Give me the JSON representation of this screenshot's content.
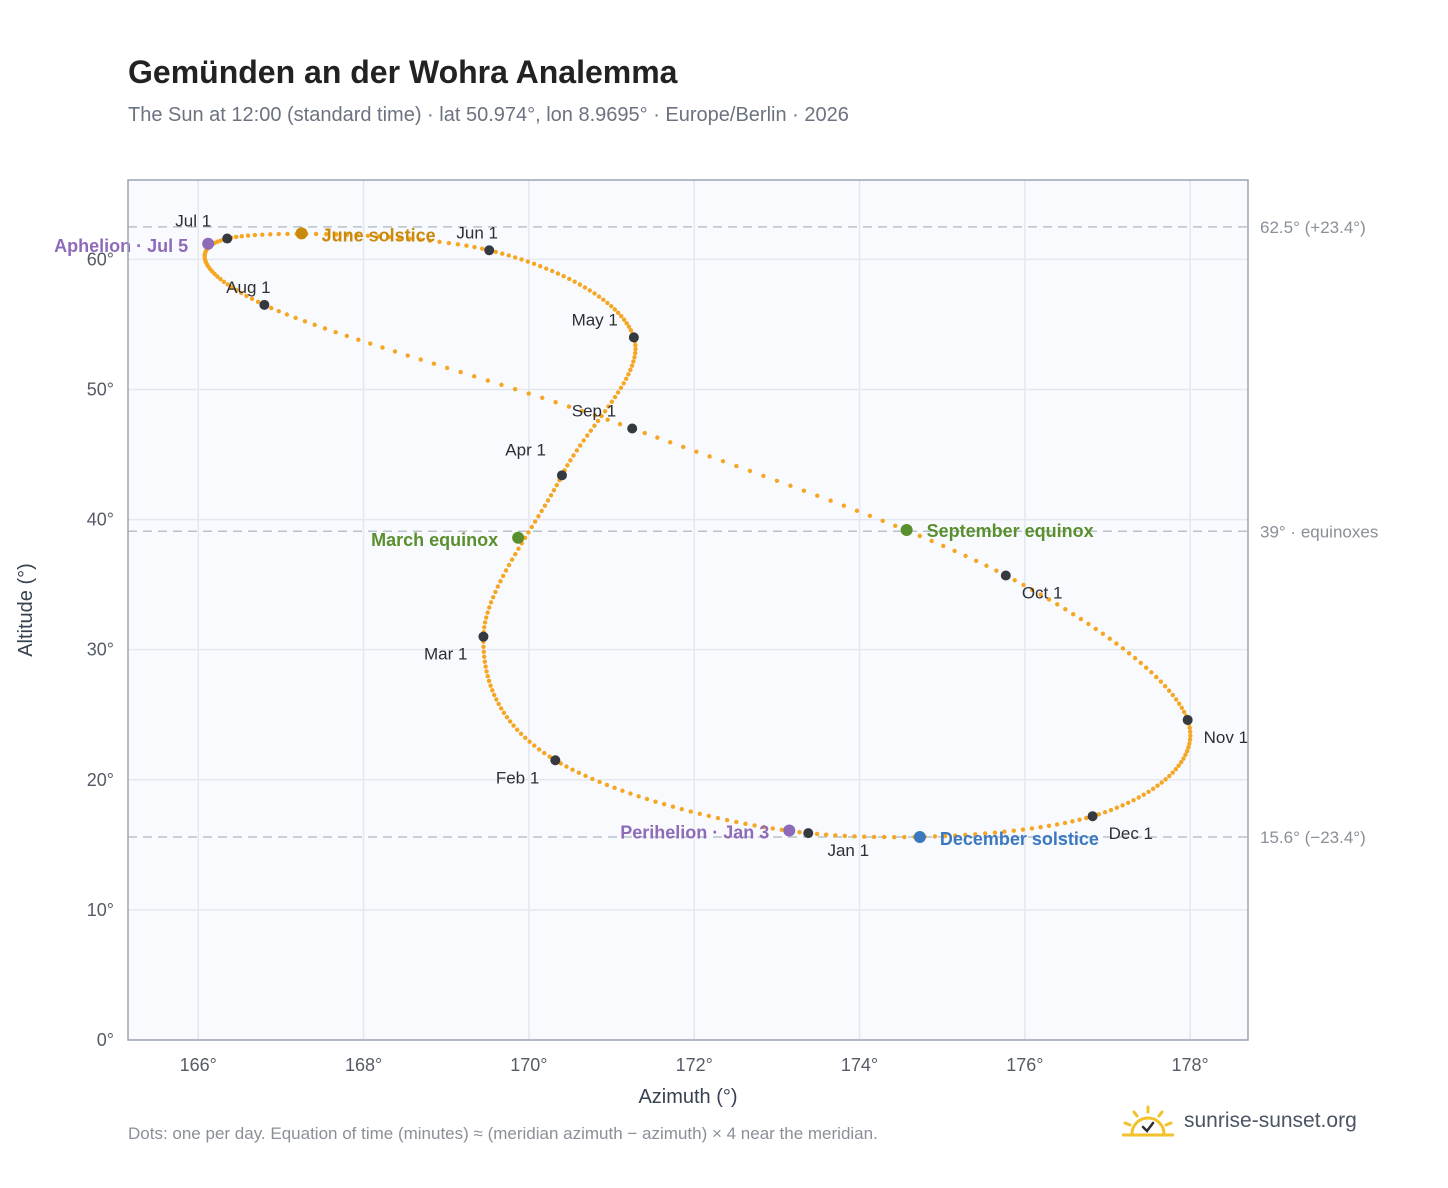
{
  "header": {
    "title": "Gemünden an der Wohra Analemma",
    "subtitle": "The Sun at 12:00 (standard time) · lat 50.974°, lon 8.9695° · Europe/Berlin · 2026"
  },
  "footer": {
    "note": "Dots: one per day. Equation of time (minutes) ≈ (meridian azimuth − azimuth) × 4 near the meridian.",
    "brand": "sunrise-sunset.org"
  },
  "colors": {
    "path": "#f5a623",
    "month_marker": "#343a40",
    "aphelion": "#8e6bb8",
    "solstice_june": "#c98a0c",
    "equinox": "#5a8f2e",
    "solstice_december": "#3b78c0",
    "plot_bg": "#f8fafd",
    "grid": "#e4e8ee",
    "reference_line": "#b8c2cc"
  },
  "chart_data": {
    "type": "scatter",
    "xlabel": "Azimuth (°)",
    "ylabel": "Altitude (°)",
    "xlim": [
      165.15,
      178.7
    ],
    "ylim": [
      0,
      62.0
    ],
    "x_ticks": [
      "166°",
      "168°",
      "170°",
      "172°",
      "174°",
      "176°",
      "178°"
    ],
    "x_tick_values": [
      166,
      168,
      170,
      172,
      174,
      176,
      178
    ],
    "y_ticks": [
      "0°",
      "10°",
      "20°",
      "30°",
      "40°",
      "50°",
      "60°"
    ],
    "y_tick_values": [
      0,
      10,
      20,
      30,
      40,
      50,
      60
    ],
    "grid": true,
    "reference_lines": [
      {
        "y": 62.5,
        "label": "62.5° (+23.4°)"
      },
      {
        "y": 39.1,
        "label": "39° · equinoxes"
      },
      {
        "y": 15.6,
        "label": "15.6° (−23.4°)"
      }
    ],
    "months": [
      {
        "label": "Jan 1",
        "az": 173.38,
        "alt": 15.9
      },
      {
        "label": "Feb 1",
        "az": 170.32,
        "alt": 21.5
      },
      {
        "label": "Mar 1",
        "az": 169.45,
        "alt": 31.0
      },
      {
        "label": "Apr 1",
        "az": 170.4,
        "alt": 43.4
      },
      {
        "label": "May 1",
        "az": 171.27,
        "alt": 54.0
      },
      {
        "label": "Jun 1",
        "az": 169.52,
        "alt": 60.7
      },
      {
        "label": "Jul 1",
        "az": 166.35,
        "alt": 61.6
      },
      {
        "label": "Aug 1",
        "az": 166.8,
        "alt": 56.5
      },
      {
        "label": "Sep 1",
        "az": 171.25,
        "alt": 47.0
      },
      {
        "label": "Oct 1",
        "az": 175.77,
        "alt": 35.7
      },
      {
        "label": "Nov 1",
        "az": 177.97,
        "alt": 24.6
      },
      {
        "label": "Dec 1",
        "az": 176.82,
        "alt": 17.2
      }
    ],
    "events": [
      {
        "label": "June solstice",
        "az": 167.25,
        "alt": 62.0,
        "color": "#c98a0c"
      },
      {
        "label": "Aphelion · Jul 5",
        "az": 166.12,
        "alt": 61.2,
        "color": "#8e6bb8"
      },
      {
        "label": "March equinox",
        "az": 169.87,
        "alt": 38.6,
        "color": "#5a8f2e"
      },
      {
        "label": "September equinox",
        "az": 174.57,
        "alt": 39.2,
        "color": "#5a8f2e"
      },
      {
        "label": "Perihelion · Jan 3",
        "az": 173.15,
        "alt": 16.1,
        "color": "#8e6bb8"
      },
      {
        "label": "December solstice",
        "az": 174.73,
        "alt": 15.6,
        "color": "#3b78c0"
      }
    ]
  }
}
